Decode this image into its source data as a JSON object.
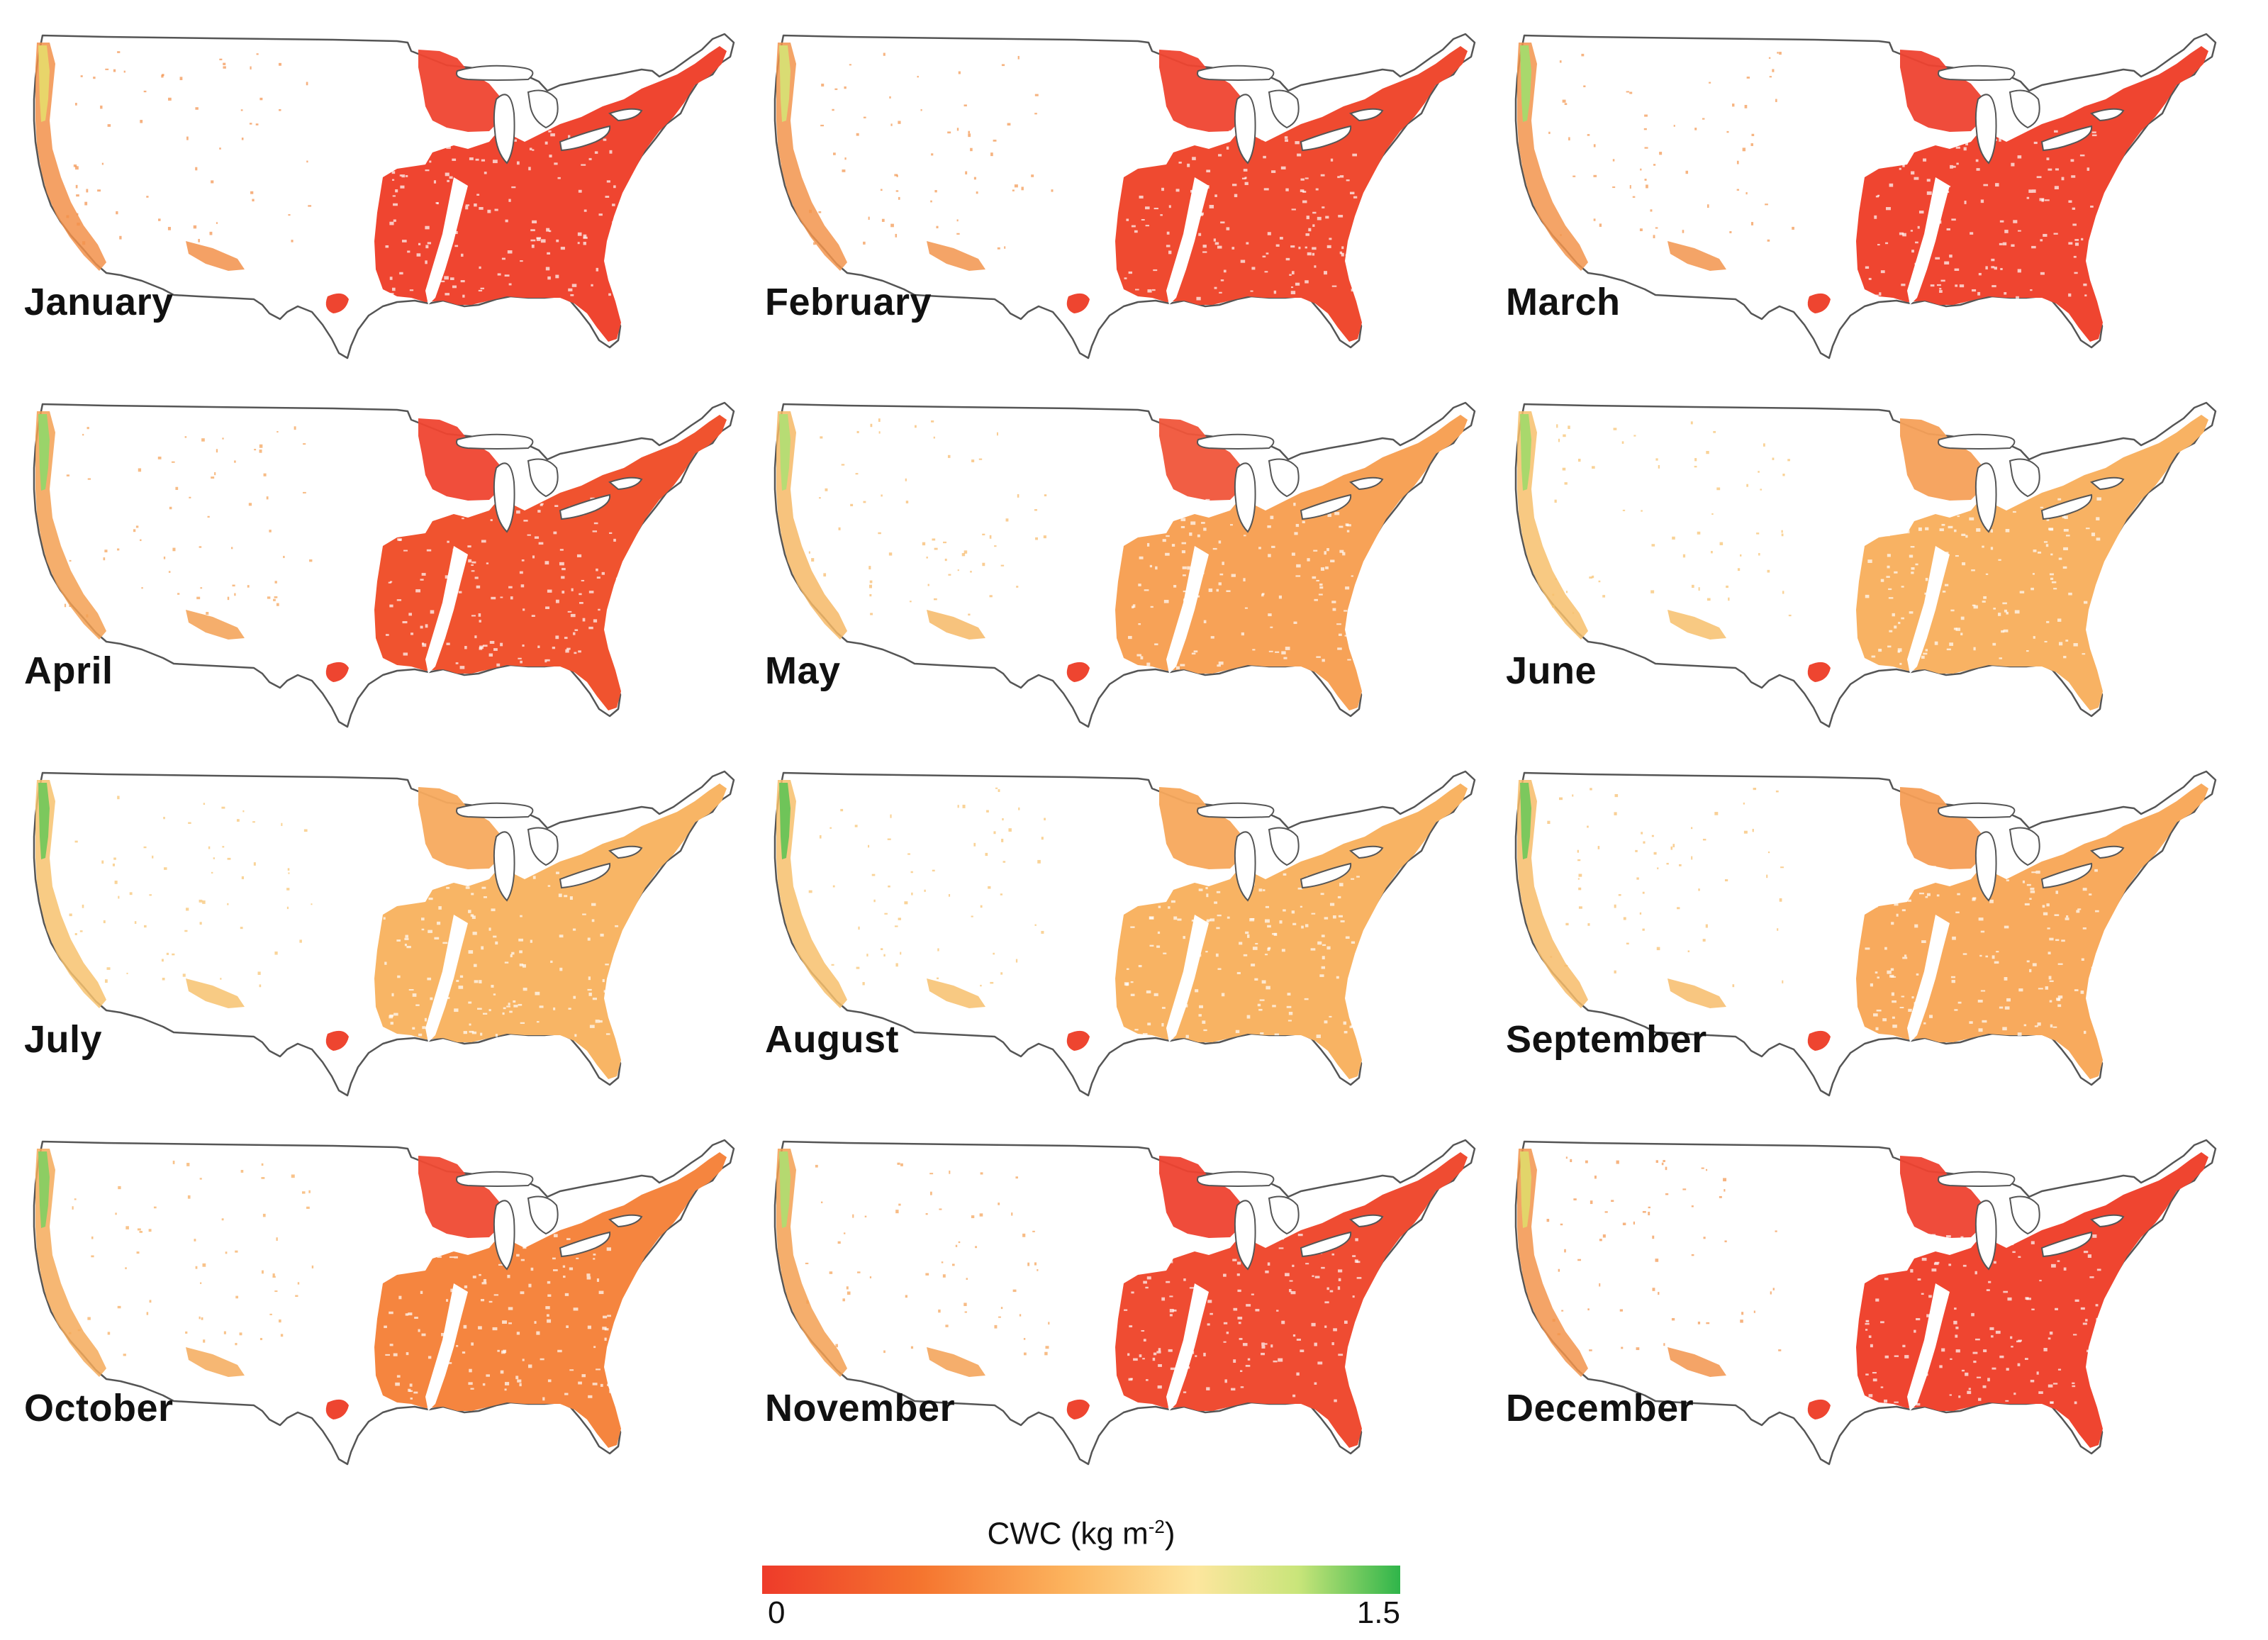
{
  "panels": [
    {
      "month": "January",
      "fill": "#ef4530",
      "west": "#f2904a",
      "cascade": "#e8d56a",
      "north": "#ef4530"
    },
    {
      "month": "February",
      "fill": "#ef4a30",
      "west": "#f2944c",
      "cascade": "#d9dc73",
      "north": "#ef4530"
    },
    {
      "month": "March",
      "fill": "#ef4530",
      "west": "#f2944c",
      "cascade": "#a9d86c",
      "north": "#ee4230"
    },
    {
      "month": "April",
      "fill": "#f0532f",
      "west": "#f3a052",
      "cascade": "#9ad46a",
      "north": "#ef4530"
    },
    {
      "month": "May",
      "fill": "#f7a257",
      "west": "#f6b866",
      "cascade": "#b7dc74",
      "north": "#f0553a"
    },
    {
      "month": "June",
      "fill": "#f8b263",
      "west": "#f7c06c",
      "cascade": "#a9d86c",
      "north": "#f6a058"
    },
    {
      "month": "July",
      "fill": "#f8b565",
      "west": "#f7c26e",
      "cascade": "#7cc85d",
      "north": "#f7aa5e"
    },
    {
      "month": "August",
      "fill": "#f8b363",
      "west": "#f7c06c",
      "cascade": "#6fc459",
      "north": "#f7a85c"
    },
    {
      "month": "September",
      "fill": "#f8aa5d",
      "west": "#f7bc6a",
      "cascade": "#7cc85d",
      "north": "#f59e56"
    },
    {
      "month": "October",
      "fill": "#f5853f",
      "west": "#f5aa5a",
      "cascade": "#8dcd63",
      "north": "#ef4a33"
    },
    {
      "month": "November",
      "fill": "#ef4c32",
      "west": "#f3a052",
      "cascade": "#b5d970",
      "north": "#ee4230"
    },
    {
      "month": "December",
      "fill": "#ef4530",
      "west": "#f2944c",
      "cascade": "#e2d56a",
      "north": "#ee4230"
    }
  ],
  "legend": {
    "title_prefix": "CWC (kg m",
    "title_sup": "-2",
    "title_suffix": ")",
    "min": "0",
    "max": "1.5",
    "colors": [
      "#ee3b2a",
      "#f5752f",
      "#fcb45e",
      "#fde69e",
      "#c9e57a",
      "#2fb54a"
    ]
  }
}
